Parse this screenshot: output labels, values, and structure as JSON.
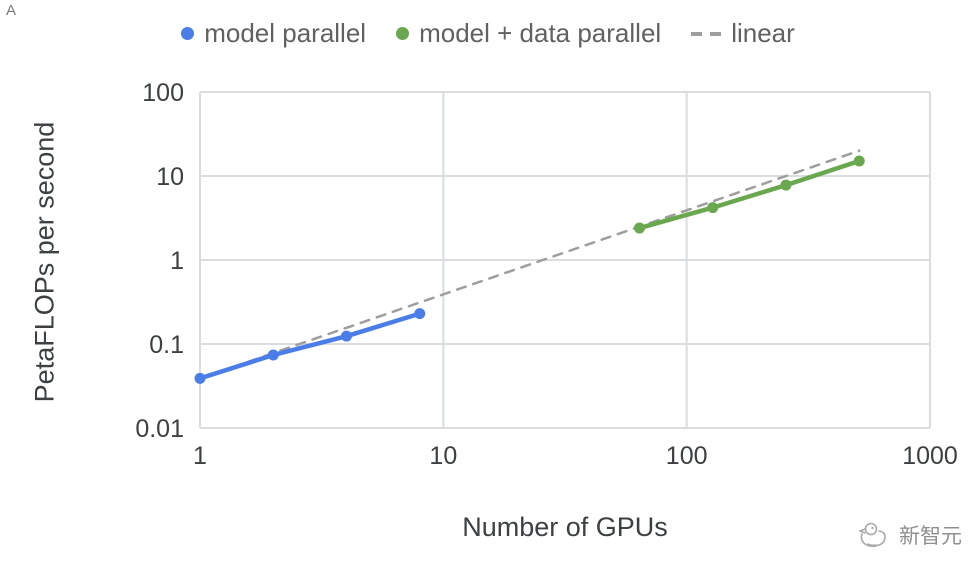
{
  "corner_artifact": "A",
  "watermark": {
    "text": "新智元"
  },
  "chart_data": {
    "type": "line",
    "title": "",
    "xlabel": "Number of GPUs",
    "ylabel": "PetaFLOPs per second",
    "x_scale": "log",
    "y_scale": "log",
    "xlim": [
      1,
      1000
    ],
    "ylim": [
      0.01,
      100
    ],
    "x_ticks": [
      1,
      10,
      100,
      1000
    ],
    "x_tick_labels": [
      "1",
      "10",
      "100",
      "1000"
    ],
    "y_ticks": [
      100,
      10,
      1,
      0.1,
      0.01
    ],
    "y_tick_labels": [
      "100",
      "10",
      "1",
      "0.1",
      "0.01"
    ],
    "grid": true,
    "legend_position": "top",
    "series": [
      {
        "name": "model parallel",
        "color": "#4a7de8",
        "style": "solid",
        "markers": true,
        "points": [
          [
            1,
            0.039
          ],
          [
            2,
            0.074
          ],
          [
            4,
            0.124
          ],
          [
            8,
            0.23
          ]
        ]
      },
      {
        "name": "model + data parallel",
        "color": "#6aa84f",
        "style": "solid",
        "markers": true,
        "points": [
          [
            64,
            2.4
          ],
          [
            128,
            4.2
          ],
          [
            256,
            7.8
          ],
          [
            512,
            15.1
          ]
        ]
      },
      {
        "name": "linear",
        "color": "#9e9e9e",
        "style": "dashed",
        "markers": false,
        "points": [
          [
            1,
            0.039
          ],
          [
            512,
            20
          ]
        ]
      }
    ]
  }
}
